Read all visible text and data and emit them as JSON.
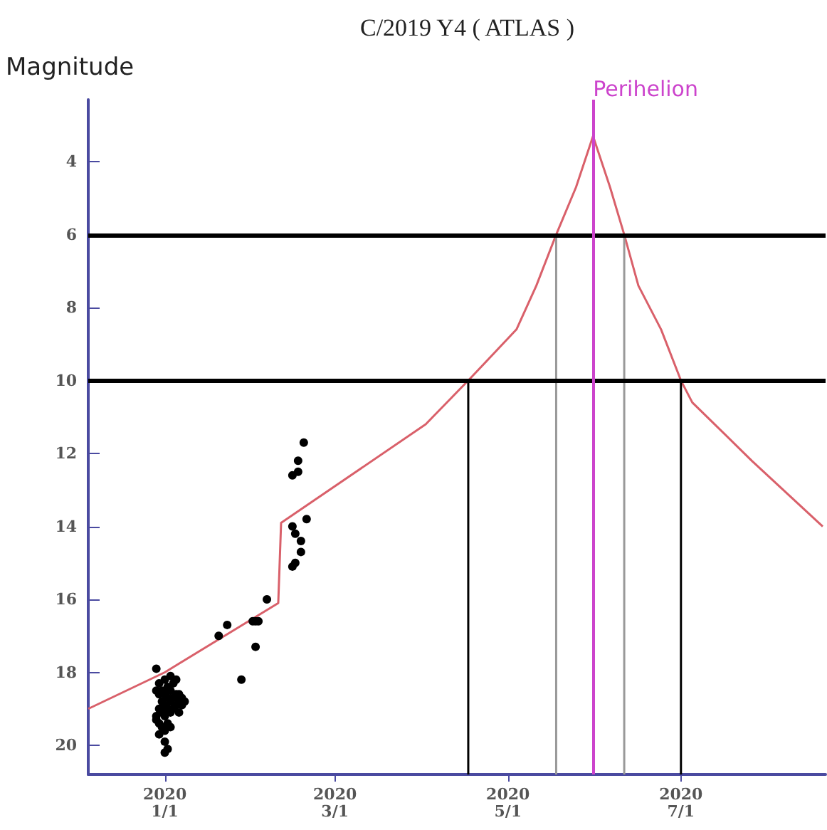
{
  "chart_data": {
    "type": "line",
    "title": "C/2019 Y4 ( ATLAS )",
    "ylabel": "Magnitude",
    "xlim": [
      "2019-12-05",
      "2020-08-21"
    ],
    "ylim": [
      20.8,
      2.3
    ],
    "xticks": [
      {
        "value": "2020-01-01",
        "label": "2020\n1/1"
      },
      {
        "value": "2020-03-01",
        "label": "2020\n3/1"
      },
      {
        "value": "2020-05-01",
        "label": "2020\n5/1"
      },
      {
        "value": "2020-07-01",
        "label": "2020\n7/1"
      }
    ],
    "yticks": [
      4,
      6,
      8,
      10,
      12,
      14,
      16,
      18,
      20
    ],
    "grid": false,
    "series": [
      {
        "marker": "none",
        "color": "#d9606a",
        "x": [
          "2019-12-05",
          "2020-01-01",
          "2020-02-10",
          "2020-02-11",
          "2020-04-02",
          "2020-04-17",
          "2020-05-04",
          "2020-05-11",
          "2020-05-18",
          "2020-05-25",
          "2020-05-31",
          "2020-06-06",
          "2020-06-11",
          "2020-06-16",
          "2020-06-24",
          "2020-07-01",
          "2020-07-05",
          "2020-07-26",
          "2020-08-20"
        ],
        "values": [
          19.0,
          18.0,
          16.1,
          13.9,
          11.2,
          10.0,
          8.6,
          7.4,
          6.0,
          4.7,
          3.3,
          4.7,
          6.0,
          7.4,
          8.6,
          10.0,
          10.6,
          12.2,
          14.0
        ]
      },
      {
        "marker": "none",
        "color": "#000000",
        "x": [
          "2020-04-17",
          "2020-04-17"
        ],
        "values": [
          20.8,
          10
        ]
      },
      {
        "marker": "none",
        "color": "#000000",
        "x": [
          "2020-07-01",
          "2020-07-01"
        ],
        "values": [
          20.8,
          10
        ]
      },
      {
        "marker": "none",
        "color": "#999999",
        "x": [
          "2020-05-18",
          "2020-05-18"
        ],
        "values": [
          20.8,
          6
        ]
      },
      {
        "marker": "none",
        "color": "#999999",
        "x": [
          "2020-06-11",
          "2020-06-11"
        ],
        "values": [
          20.8,
          6
        ]
      },
      {
        "type": "scatter",
        "marker": "circle",
        "color": "#000000",
        "x": [
          "2019-12-29",
          "2019-12-29",
          "2019-12-29",
          "2019-12-29",
          "2019-12-30",
          "2019-12-30",
          "2019-12-30",
          "2019-12-30",
          "2019-12-30",
          "2019-12-31",
          "2019-12-31",
          "2019-12-31",
          "2019-12-31",
          "2020-01-01",
          "2020-01-01",
          "2020-01-01",
          "2020-01-01",
          "2020-01-01",
          "2020-01-01",
          "2020-01-01",
          "2020-01-02",
          "2020-01-02",
          "2020-01-02",
          "2020-01-02",
          "2020-01-02",
          "2020-01-03",
          "2020-01-03",
          "2020-01-03",
          "2020-01-03",
          "2020-01-03",
          "2020-01-04",
          "2020-01-04",
          "2020-01-04",
          "2020-01-05",
          "2020-01-05",
          "2020-01-05",
          "2020-01-06",
          "2020-01-06",
          "2020-01-06",
          "2020-01-07",
          "2020-01-07",
          "2020-01-08",
          "2020-01-20",
          "2020-01-23",
          "2020-01-28",
          "2020-02-01",
          "2020-02-02",
          "2020-02-03",
          "2020-02-02",
          "2020-02-06",
          "2020-02-19",
          "2020-02-17",
          "2020-02-17",
          "2020-02-15",
          "2020-02-20",
          "2020-02-15",
          "2020-02-16",
          "2020-02-18",
          "2020-02-18",
          "2020-02-16",
          "2020-02-15"
        ],
        "values": [
          17.9,
          18.5,
          19.2,
          19.3,
          18.3,
          18.6,
          19.0,
          19.4,
          19.7,
          18.5,
          18.8,
          19.1,
          19.5,
          18.2,
          18.6,
          18.9,
          19.2,
          19.6,
          19.9,
          20.2,
          18.4,
          18.7,
          19.0,
          19.4,
          20.1,
          18.1,
          18.5,
          18.8,
          19.1,
          19.5,
          18.3,
          18.7,
          19.0,
          18.2,
          18.6,
          18.9,
          18.6,
          18.8,
          19.1,
          18.7,
          18.9,
          18.8,
          17.0,
          16.7,
          18.2,
          16.6,
          16.6,
          16.6,
          17.3,
          16.0,
          11.7,
          12.2,
          12.5,
          12.6,
          13.8,
          14.0,
          14.2,
          14.4,
          14.7,
          15.0,
          15.1
        ]
      }
    ],
    "ref_lines": [
      {
        "axis": "y",
        "value": 6,
        "color": "#000000"
      },
      {
        "axis": "y",
        "value": 10,
        "color": "#000000"
      },
      {
        "axis": "x",
        "value": "2020-05-31",
        "label": "Perihelion",
        "color": "#cc44cc"
      }
    ]
  }
}
